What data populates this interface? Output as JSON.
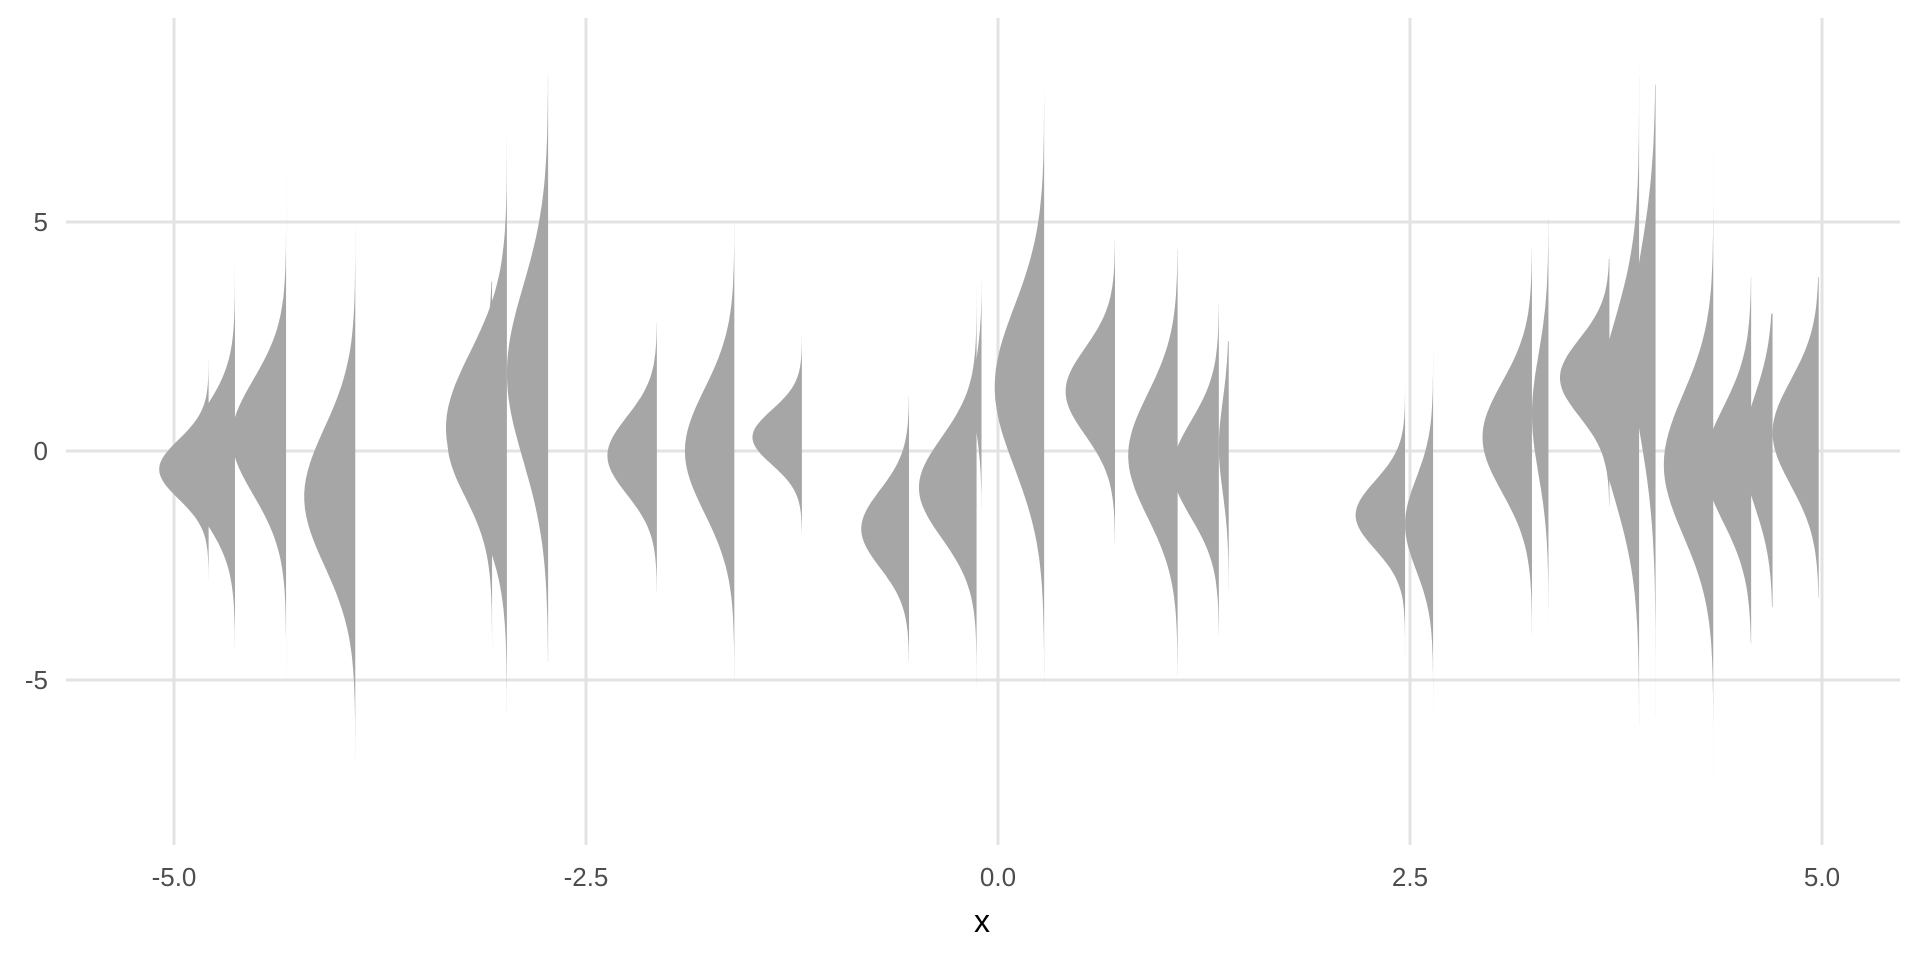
{
  "chart_data": {
    "type": "half-violin",
    "title": "",
    "xlabel": "x",
    "ylabel": "",
    "xlim": [
      -5.5,
      5.5
    ],
    "ylim": [
      -8.5,
      9.5
    ],
    "x_ticks": [
      -5.0,
      -2.5,
      0.0,
      2.5,
      5.0
    ],
    "x_tick_labels": [
      "-5.0",
      "-2.5",
      "0.0",
      "2.5",
      "5.0"
    ],
    "y_ticks": [
      -5,
      0,
      5
    ],
    "y_tick_labels": [
      "-5",
      "0",
      "5"
    ],
    "grid": true,
    "fill_color": "#a6a6a6",
    "grid_color": "#e3e3e3",
    "distributions": [
      {
        "x": -4.79,
        "mean": -0.4,
        "sd": 0.65,
        "width": 0.3,
        "ymin": -3.0,
        "ymax": 2.1
      },
      {
        "x": -4.63,
        "mean": -0.3,
        "sd": 1.1,
        "width": 0.34,
        "ymin": -4.3,
        "ymax": 4.4
      },
      {
        "x": -4.32,
        "mean": 0.3,
        "sd": 1.25,
        "width": 0.33,
        "ymin": -5.1,
        "ymax": 6.0
      },
      {
        "x": -3.9,
        "mean": -1.0,
        "sd": 1.5,
        "width": 0.31,
        "ymin": -7.8,
        "ymax": 5.6
      },
      {
        "x": -3.07,
        "mean": 0.2,
        "sd": 1.2,
        "width": 0.27,
        "ymin": -4.3,
        "ymax": 3.7
      },
      {
        "x": -2.98,
        "mean": 0.5,
        "sd": 1.65,
        "width": 0.37,
        "ymin": -5.8,
        "ymax": 7.7
      },
      {
        "x": -2.73,
        "mean": 1.7,
        "sd": 1.9,
        "width": 0.25,
        "ymin": -4.6,
        "ymax": 8.2
      },
      {
        "x": -2.07,
        "mean": -0.1,
        "sd": 0.85,
        "width": 0.3,
        "ymin": -3.1,
        "ymax": 2.8
      },
      {
        "x": -1.6,
        "mean": 0.0,
        "sd": 1.35,
        "width": 0.3,
        "ymin": -6.3,
        "ymax": 6.3
      },
      {
        "x": -1.19,
        "mean": 0.3,
        "sd": 0.6,
        "width": 0.3,
        "ymin": -1.8,
        "ymax": 2.5
      },
      {
        "x": -0.54,
        "mean": -1.7,
        "sd": 0.85,
        "width": 0.29,
        "ymin": -4.6,
        "ymax": 1.2
      },
      {
        "x": -0.13,
        "mean": -0.8,
        "sd": 1.1,
        "width": 0.35,
        "ymin": -5.3,
        "ymax": 3.6
      },
      {
        "x": -0.1,
        "mean": 1.2,
        "sd": 0.8,
        "width": 0.05,
        "ymin": -5.8,
        "ymax": 4.8
      },
      {
        "x": 0.28,
        "mean": 1.4,
        "sd": 1.75,
        "width": 0.3,
        "ymin": -5.1,
        "ymax": 8.0
      },
      {
        "x": 0.71,
        "mean": 1.3,
        "sd": 0.95,
        "width": 0.3,
        "ymin": -2.0,
        "ymax": 4.6
      },
      {
        "x": 1.09,
        "mean": -0.1,
        "sd": 1.35,
        "width": 0.3,
        "ymin": -4.9,
        "ymax": 4.4
      },
      {
        "x": 1.34,
        "mean": -0.4,
        "sd": 1.05,
        "width": 0.28,
        "ymin": -4.0,
        "ymax": 3.2
      },
      {
        "x": 1.4,
        "mean": 0.1,
        "sd": 1.0,
        "width": 0.06,
        "ymin": -3.5,
        "ymax": 2.4
      },
      {
        "x": 2.47,
        "mean": -1.4,
        "sd": 0.75,
        "width": 0.3,
        "ymin": -4.6,
        "ymax": 1.4
      },
      {
        "x": 2.64,
        "mean": -1.6,
        "sd": 1.0,
        "width": 0.17,
        "ymin": -5.8,
        "ymax": 2.2
      },
      {
        "x": 3.24,
        "mean": 0.3,
        "sd": 1.2,
        "width": 0.3,
        "ymin": -4.0,
        "ymax": 4.4
      },
      {
        "x": 3.34,
        "mean": 0.8,
        "sd": 1.3,
        "width": 0.1,
        "ymin": -3.8,
        "ymax": 5.1
      },
      {
        "x": 3.71,
        "mean": 1.6,
        "sd": 0.85,
        "width": 0.3,
        "ymin": -1.2,
        "ymax": 4.2
      },
      {
        "x": 3.89,
        "mean": 0.9,
        "sd": 1.9,
        "width": 0.25,
        "ymin": -6.0,
        "ymax": 8.5
      },
      {
        "x": 3.99,
        "mean": 2.3,
        "sd": 2.0,
        "width": 0.15,
        "ymin": -5.8,
        "ymax": 8.0
      },
      {
        "x": 4.34,
        "mean": -0.3,
        "sd": 1.55,
        "width": 0.3,
        "ymin": -7.2,
        "ymax": 6.6
      },
      {
        "x": 4.57,
        "mean": -0.3,
        "sd": 1.25,
        "width": 0.28,
        "ymin": -4.2,
        "ymax": 3.8
      },
      {
        "x": 4.7,
        "mean": 0.0,
        "sd": 1.2,
        "width": 0.18,
        "ymin": -3.4,
        "ymax": 3.0
      },
      {
        "x": 4.98,
        "mean": 0.4,
        "sd": 1.15,
        "width": 0.28,
        "ymin": -3.2,
        "ymax": 3.8
      }
    ]
  }
}
